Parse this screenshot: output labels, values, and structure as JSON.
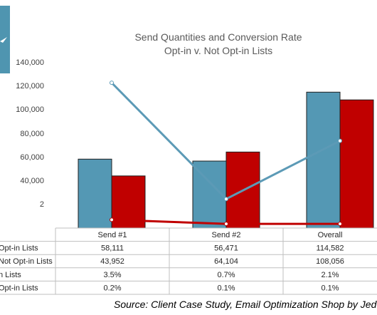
{
  "colors": {
    "optin": "#5498b4",
    "notoptin": "#c00000",
    "optin_line": "#5c9ab6",
    "notoptin_line": "#c00000",
    "grid": "#d9d9d9"
  },
  "chart_data": {
    "type": "bar",
    "title": "Send Quantities and Conversion Rate",
    "subtitle": "Opt-in v. Not Opt-in Lists",
    "categories": [
      "Send #1",
      "Send #2",
      "Overall"
    ],
    "y_ticks": [
      "140,000",
      "120,000",
      "100,000",
      "80,000",
      "60,000",
      "40,000",
      "2"
    ],
    "ylim": [
      0,
      140000
    ],
    "grid": false,
    "series": [
      {
        "name": "Opt-in Lists",
        "display_name": "Opt-in Lists",
        "kind": "bar",
        "values": [
          58111,
          56471,
          114582
        ],
        "labels": [
          "58,111",
          "56,471",
          "114,582"
        ]
      },
      {
        "name": "Not Opt-in Lists",
        "display_name": "Not Opt-in Lists",
        "kind": "bar",
        "values": [
          43952,
          64104,
          108056
        ],
        "labels": [
          "43,952",
          "64,104",
          "108,056"
        ]
      },
      {
        "name": "Opt-in Lists conversion",
        "display_name": "n Lists",
        "kind": "line",
        "values": [
          3.5,
          0.7,
          2.1
        ],
        "labels": [
          "3.5%",
          "0.7%",
          "2.1%"
        ]
      },
      {
        "name": "Not Opt-in Lists conversion",
        "display_name": "Opt-in Lists",
        "kind": "line",
        "values": [
          0.2,
          0.1,
          0.1
        ],
        "labels": [
          "0.2%",
          "0.1%",
          "0.1%"
        ]
      }
    ],
    "secondary_ylim": [
      0,
      4
    ]
  },
  "source": "Source: Client Case Study, Email Optimization Shop by Jed"
}
